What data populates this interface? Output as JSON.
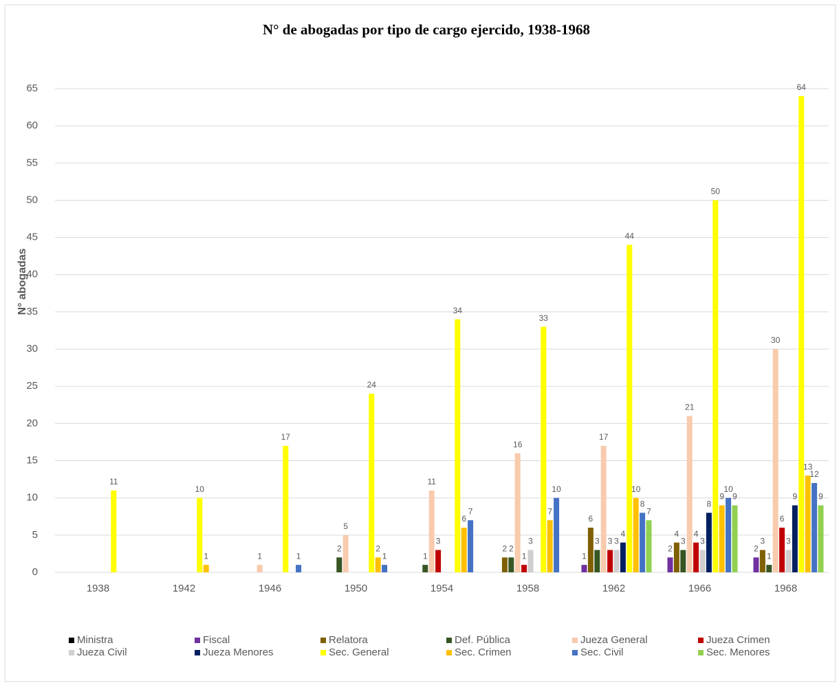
{
  "chart_data": {
    "type": "bar",
    "title": "N° de abogadas por tipo de cargo ejercido, 1938-1968",
    "y_label": "N° abogadas",
    "categories": [
      "1938",
      "1942",
      "1946",
      "1950",
      "1954",
      "1958",
      "1962",
      "1966",
      "1968"
    ],
    "series": [
      {
        "name": "Ministra",
        "color": "#000000",
        "values": [
          0,
          0,
          0,
          0,
          0,
          0,
          0,
          0,
          0
        ]
      },
      {
        "name": "Fiscal",
        "color": "#7030a0",
        "values": [
          0,
          0,
          0,
          0,
          0,
          0,
          1,
          2,
          2
        ]
      },
      {
        "name": "Relatora",
        "color": "#7f6000",
        "values": [
          0,
          0,
          0,
          0,
          0,
          2,
          6,
          4,
          3
        ]
      },
      {
        "name": "Def. Pública",
        "color": "#375623",
        "values": [
          0,
          0,
          0,
          2,
          1,
          2,
          3,
          3,
          1
        ]
      },
      {
        "name": "Jueza General",
        "color": "#f8cbad",
        "values": [
          0,
          0,
          1,
          5,
          11,
          16,
          17,
          21,
          30
        ]
      },
      {
        "name": "Jueza Crimen",
        "color": "#c00000",
        "values": [
          0,
          0,
          0,
          0,
          3,
          1,
          3,
          4,
          6
        ]
      },
      {
        "name": "Jueza Civil",
        "color": "#d0cece",
        "values": [
          0,
          0,
          0,
          0,
          0,
          3,
          3,
          3,
          3
        ]
      },
      {
        "name": "Jueza Menores",
        "color": "#002060",
        "values": [
          0,
          0,
          0,
          0,
          0,
          0,
          4,
          8,
          9
        ]
      },
      {
        "name": "Sec. General",
        "color": "#ffff00",
        "values": [
          11,
          10,
          17,
          24,
          34,
          33,
          44,
          50,
          64
        ]
      },
      {
        "name": "Sec. Crimen",
        "color": "#ffc000",
        "values": [
          0,
          1,
          0,
          2,
          6,
          7,
          10,
          9,
          13
        ]
      },
      {
        "name": "Sec. Civil",
        "color": "#4472c4",
        "values": [
          0,
          0,
          1,
          1,
          7,
          10,
          8,
          10,
          12
        ]
      },
      {
        "name": "Sec. Menores",
        "color": "#92d050",
        "values": [
          0,
          0,
          0,
          0,
          0,
          0,
          7,
          9,
          9
        ]
      }
    ],
    "ylim": [
      0,
      65
    ],
    "yticks": [
      0,
      5,
      10,
      15,
      20,
      25,
      30,
      35,
      40,
      45,
      50,
      55,
      60,
      65
    ],
    "grid": true,
    "legend": "bottom"
  }
}
